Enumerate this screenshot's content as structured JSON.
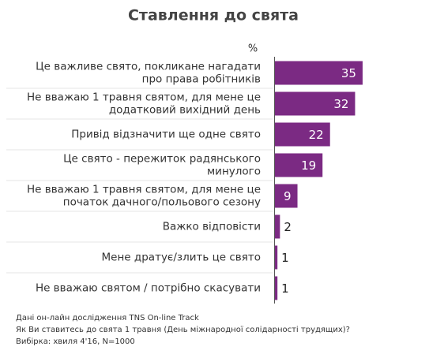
{
  "chart_data": {
    "type": "hbar",
    "title": "Ставлення до свята",
    "unit_label": "%",
    "categories": [
      [
        "Це важливе свято, покликане нагадати",
        "про права робітників"
      ],
      [
        "Не вважаю 1 травня святом, для мене це",
        "додатковий вихідний день"
      ],
      [
        "Привід відзначити ще одне свято"
      ],
      [
        "Це свято - пережиток радянського",
        "минулого"
      ],
      [
        "Не вважаю 1 травня святом, для мене це",
        "початок дачного/польового сезону"
      ],
      [
        "Важко відповісти"
      ],
      [
        "Мене дратує/злить це свято"
      ],
      [
        "Не вважаю святом / потрібно скасувати"
      ]
    ],
    "values": [
      35,
      32,
      22,
      19,
      9,
      2,
      1,
      1
    ],
    "color": "#7b2a83",
    "notes": [
      "Дані он-лайн дослідження TNS On-line Track",
      "Як Ви ставитесь до свята 1 травня (День міжнародної солідарності трудящих)?",
      "Вибірка: хвиля 4'16, N=1000"
    ]
  }
}
